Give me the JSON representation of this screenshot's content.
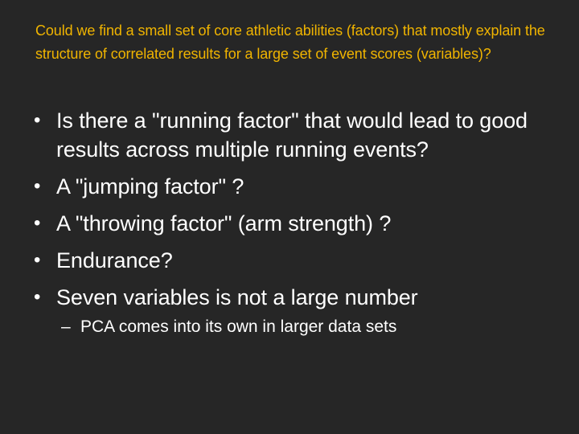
{
  "slide": {
    "title": "Could we find a small set of core athletic abilities (factors) that mostly explain the structure of correlated results for a large set of event scores (variables)?",
    "bullet_symbol": "•",
    "sub_bullet_symbol": "–",
    "bullets": [
      "Is there a \"running factor\" that would lead to good results across multiple running events?",
      "A \"jumping factor\" ?",
      "A \"throwing factor\" (arm strength) ?",
      "Endurance?",
      "Seven variables is not a large number"
    ],
    "sub_bullets": [
      "PCA comes into its own in larger data sets"
    ],
    "colors": {
      "background": "#262626",
      "title": "#f0b400",
      "body_text": "#ffffff"
    }
  }
}
